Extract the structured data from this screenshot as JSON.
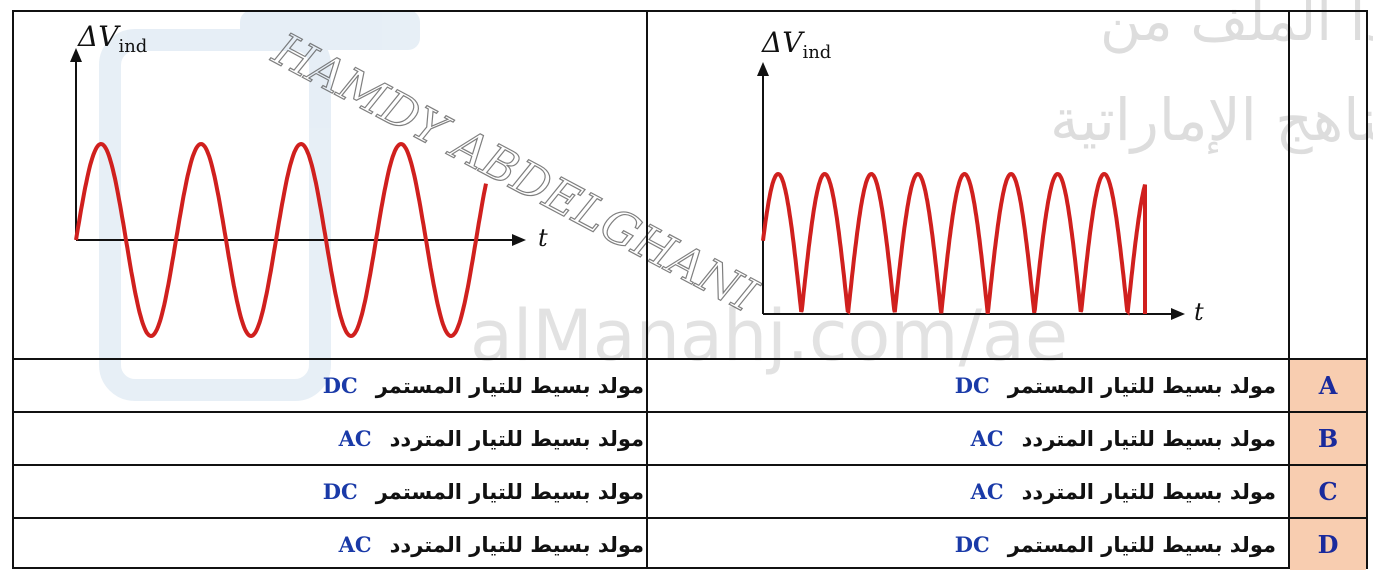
{
  "graphs": {
    "axis_y_label": "ΔV",
    "axis_y_sub": "ind",
    "axis_x_label": "t",
    "left_graph": "ac-sine",
    "right_graph": "rectified-dc"
  },
  "rows": [
    {
      "letter": "A",
      "right_text": "مولد بسيط للتيار المستمر",
      "right_code": "DC",
      "left_text": "مولد بسيط للتيار المستمر",
      "left_code": "DC"
    },
    {
      "letter": "B",
      "right_text": "مولد بسيط للتيار المتردد",
      "right_code": "AC",
      "left_text": "مولد بسيط للتيار المتردد",
      "left_code": "AC"
    },
    {
      "letter": "C",
      "right_text": "مولد بسيط للتيار المتردد",
      "right_code": "AC",
      "left_text": "مولد بسيط للتيار المستمر",
      "left_code": "DC"
    },
    {
      "letter": "D",
      "right_text": "مولد بسيط للتيار المستمر",
      "right_code": "DC",
      "left_text": "مولد بسيط للتيار المتردد",
      "left_code": "AC"
    }
  ],
  "watermark": {
    "line1": "تم تحميل هذا الملف من",
    "line2": "موقع المناهج الإماراتية",
    "site": "alManahj.com/ae",
    "signature": "HAMDY ABDELGHANI"
  },
  "colors": {
    "curve": "#d0201e",
    "letter_bg": "#f8cdb0",
    "code_blue": "#1a3aa8"
  }
}
